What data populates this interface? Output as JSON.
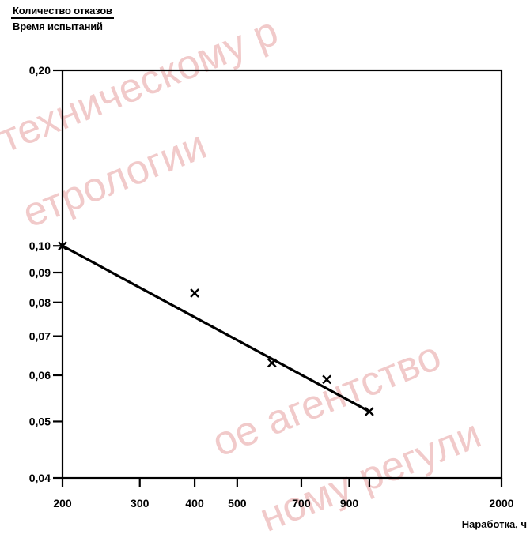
{
  "chart_data": {
    "type": "scatter",
    "title": "",
    "ylabel_numerator": "Количество отказов",
    "ylabel_denominator": "Время испытаний",
    "xlabel": "Наработка, ч",
    "x_scale": "log",
    "y_scale": "log",
    "xlim": [
      200,
      2000
    ],
    "ylim": [
      0.04,
      0.2
    ],
    "x_ticks": [
      200,
      300,
      400,
      500,
      700,
      900,
      2000
    ],
    "x_tick_labels": [
      "200",
      "300",
      "400",
      "500",
      "700",
      "900",
      "2000"
    ],
    "y_ticks": [
      0.04,
      0.05,
      0.06,
      0.07,
      0.08,
      0.09,
      0.1,
      0.2
    ],
    "y_tick_labels": [
      "0,04",
      "0,05",
      "0,06",
      "0,07",
      "0,08",
      "0,09",
      "0,10",
      "0,20"
    ],
    "points_marker": "x",
    "points": [
      {
        "x": 200,
        "y": 0.1
      },
      {
        "x": 400,
        "y": 0.083
      },
      {
        "x": 600,
        "y": 0.063
      },
      {
        "x": 800,
        "y": 0.059
      },
      {
        "x": 1000,
        "y": 0.052
      }
    ],
    "fit_line": {
      "x": [
        200,
        1000
      ],
      "y": [
        0.1,
        0.052
      ]
    },
    "grid": false,
    "legend": "none"
  },
  "watermark": {
    "lines": [
      "техническому р",
      "етрологии",
      "ое агентство",
      "ному регули"
    ],
    "color": "#f1caca"
  }
}
